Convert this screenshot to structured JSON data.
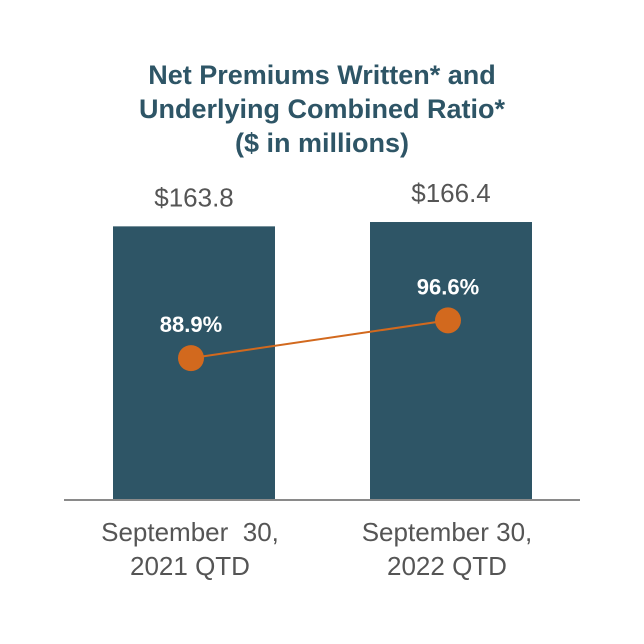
{
  "chart_data": {
    "type": "bar",
    "title_lines": [
      "Net Premiums Written* and",
      "Underlying Combined Ratio*",
      "($ in millions)"
    ],
    "categories": [
      [
        "September  30,",
        "2021 QTD"
      ],
      [
        "September 30,",
        "2022 QTD"
      ]
    ],
    "series": [
      {
        "type": "bar",
        "values": [
          163.8,
          166.4
        ],
        "value_labels": [
          "$163.8",
          "$166.4"
        ],
        "color": "#2e5566"
      },
      {
        "type": "line",
        "values": [
          88.9,
          96.6
        ],
        "value_labels": [
          "88.9%",
          "96.6%"
        ],
        "color": "#d2691e"
      }
    ],
    "ylim": [
      0,
      170
    ],
    "ratio_axis_range": [
      60,
      115
    ],
    "grid": false,
    "legend": "none"
  }
}
